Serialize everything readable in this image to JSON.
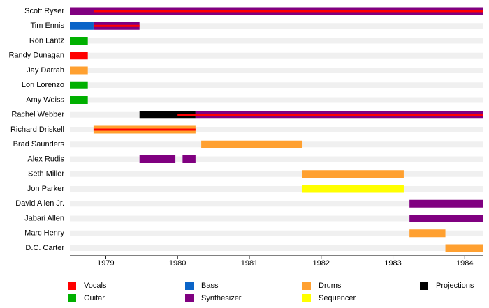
{
  "chart_data": {
    "type": "timeline",
    "xlim": [
      1978.5,
      1984.25
    ],
    "xticks": [
      1979,
      1980,
      1981,
      1982,
      1983,
      1984
    ],
    "roles": [
      {
        "name": "Vocals",
        "color": "#ff0000"
      },
      {
        "name": "Guitar",
        "color": "#00b000"
      },
      {
        "name": "Bass",
        "color": "#0a64c8"
      },
      {
        "name": "Synthesizer",
        "color": "#800080"
      },
      {
        "name": "Drums",
        "color": "#ffa030"
      },
      {
        "name": "Sequencer",
        "color": "#ffff00"
      },
      {
        "name": "Projections",
        "color": "#000000"
      }
    ],
    "rows": [
      {
        "name": "Scott Ryser",
        "spans": [
          {
            "role": "Synthesizer",
            "start": 1978.5,
            "end": 1984.25
          },
          {
            "role": "Vocals",
            "start": 1978.83,
            "end": 1984.25
          }
        ]
      },
      {
        "name": "Tim Ennis",
        "spans": [
          {
            "role": "Bass",
            "start": 1978.5,
            "end": 1978.83
          },
          {
            "role": "Synthesizer",
            "start": 1978.83,
            "end": 1979.47
          },
          {
            "role": "Vocals",
            "start": 1978.83,
            "end": 1979.47
          }
        ]
      },
      {
        "name": "Ron Lantz",
        "spans": [
          {
            "role": "Guitar",
            "start": 1978.5,
            "end": 1978.75
          }
        ]
      },
      {
        "name": "Randy Dunagan",
        "spans": [
          {
            "role": "Vocals",
            "start": 1978.5,
            "end": 1978.75
          }
        ]
      },
      {
        "name": "Jay Darrah",
        "spans": [
          {
            "role": "Drums",
            "start": 1978.5,
            "end": 1978.75
          }
        ]
      },
      {
        "name": "Lori Lorenzo",
        "spans": [
          {
            "role": "Guitar",
            "start": 1978.5,
            "end": 1978.75
          }
        ]
      },
      {
        "name": "Amy Weiss",
        "spans": [
          {
            "role": "Guitar",
            "start": 1978.5,
            "end": 1978.75
          }
        ]
      },
      {
        "name": "Rachel Webber",
        "spans": [
          {
            "role": "Projections",
            "start": 1979.47,
            "end": 1980.25
          },
          {
            "role": "Synthesizer",
            "start": 1980.25,
            "end": 1984.25
          },
          {
            "role": "Vocals",
            "start": 1980.0,
            "end": 1984.25
          }
        ]
      },
      {
        "name": "Richard Driskell",
        "spans": [
          {
            "role": "Drums",
            "start": 1978.83,
            "end": 1980.25
          },
          {
            "role": "Vocals",
            "start": 1978.83,
            "end": 1980.25
          }
        ]
      },
      {
        "name": "Brad Saunders",
        "spans": [
          {
            "role": "Drums",
            "start": 1980.33,
            "end": 1981.74
          }
        ]
      },
      {
        "name": "Alex Rudis",
        "spans": [
          {
            "role": "Synthesizer",
            "start": 1979.47,
            "end": 1979.97
          },
          {
            "role": "Synthesizer",
            "start": 1980.07,
            "end": 1980.25
          }
        ]
      },
      {
        "name": "Seth Miller",
        "spans": [
          {
            "role": "Drums",
            "start": 1981.73,
            "end": 1983.15
          }
        ]
      },
      {
        "name": "Jon Parker",
        "spans": [
          {
            "role": "Sequencer",
            "start": 1981.73,
            "end": 1983.15
          }
        ]
      },
      {
        "name": "David Allen Jr.",
        "spans": [
          {
            "role": "Synthesizer",
            "start": 1983.23,
            "end": 1984.25
          }
        ]
      },
      {
        "name": "Jabari Allen",
        "spans": [
          {
            "role": "Synthesizer",
            "start": 1983.23,
            "end": 1984.25
          }
        ]
      },
      {
        "name": "Marc Henry",
        "spans": [
          {
            "role": "Drums",
            "start": 1983.23,
            "end": 1983.73
          }
        ]
      },
      {
        "name": "D.C. Carter",
        "spans": [
          {
            "role": "Drums",
            "start": 1983.73,
            "end": 1984.25
          }
        ]
      }
    ]
  }
}
